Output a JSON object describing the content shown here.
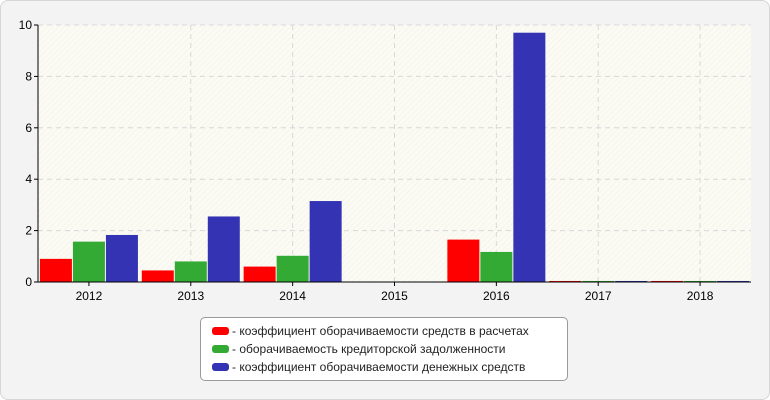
{
  "chart_data": {
    "type": "bar",
    "categories": [
      "2012",
      "2013",
      "2014",
      "2015",
      "2016",
      "2017",
      "2018"
    ],
    "series": [
      {
        "name": "- коэффициент оборачиваемости средств в расчетах",
        "color": "#ff0000",
        "values": [
          0.9,
          0.45,
          0.6,
          0,
          1.65,
          0.04,
          0.04
        ]
      },
      {
        "name": "- оборачиваемость кредиторской задолженности",
        "color": "#33aa33",
        "values": [
          1.57,
          0.8,
          1.02,
          0,
          1.17,
          0.04,
          0.04
        ]
      },
      {
        "name": "- коэффициент оборачиваемости денежных средств",
        "color": "#3333b3",
        "values": [
          1.83,
          2.55,
          3.15,
          0,
          9.7,
          0.04,
          0.04
        ]
      }
    ],
    "yticks": [
      "0",
      "2",
      "4",
      "6",
      "8",
      "10"
    ],
    "ylim": [
      0,
      10
    ],
    "grid": true,
    "legend_position": "bottom-center"
  }
}
